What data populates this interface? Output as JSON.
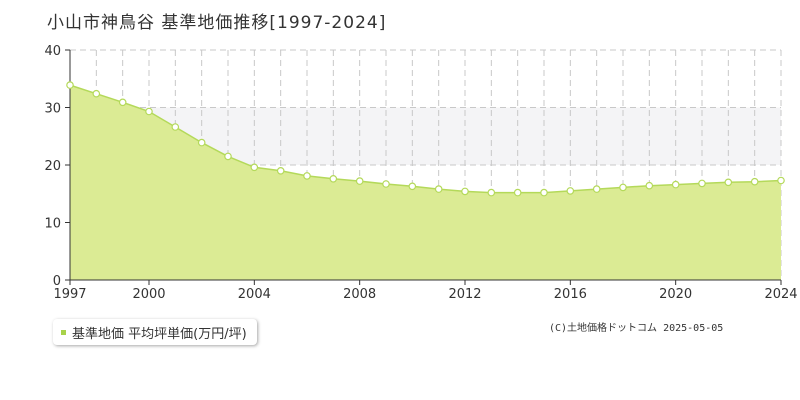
{
  "chart_data": {
    "type": "area",
    "title": "小山市神鳥谷 基準地価推移[1997-2024]",
    "x": [
      1997,
      1998,
      1999,
      2000,
      2001,
      2002,
      2003,
      2004,
      2005,
      2006,
      2007,
      2008,
      2009,
      2010,
      2011,
      2012,
      2013,
      2014,
      2015,
      2016,
      2017,
      2018,
      2019,
      2020,
      2021,
      2022,
      2023,
      2024
    ],
    "series": [
      {
        "name": "基準地価 平均坪単価(万円/坪)",
        "values": [
          33.9,
          32.4,
          30.9,
          29.3,
          26.6,
          23.9,
          21.5,
          19.6,
          19.0,
          18.1,
          17.6,
          17.2,
          16.7,
          16.3,
          15.8,
          15.4,
          15.2,
          15.2,
          15.2,
          15.5,
          15.8,
          16.1,
          16.4,
          16.6,
          16.8,
          17.0,
          17.1,
          17.3
        ]
      }
    ],
    "x_ticks": [
      "1997",
      "2000",
      "2004",
      "2008",
      "2012",
      "2016",
      "2020",
      "2024"
    ],
    "y_ticks": [
      "0",
      "10",
      "20",
      "30",
      "40"
    ],
    "ylim": [
      0,
      40
    ],
    "xlim": [
      1997,
      2024
    ],
    "grid": true,
    "legend_position": "bottom-left",
    "colors": {
      "fill": "#dbeb94",
      "line": "#b4d95a",
      "marker_fill": "#ffffff",
      "grid": "#c8c8c8",
      "band": "#f4f4f6",
      "legend_swatch": "#a8d24a"
    }
  },
  "copyright": "(C)土地価格ドットコム 2025-05-05"
}
